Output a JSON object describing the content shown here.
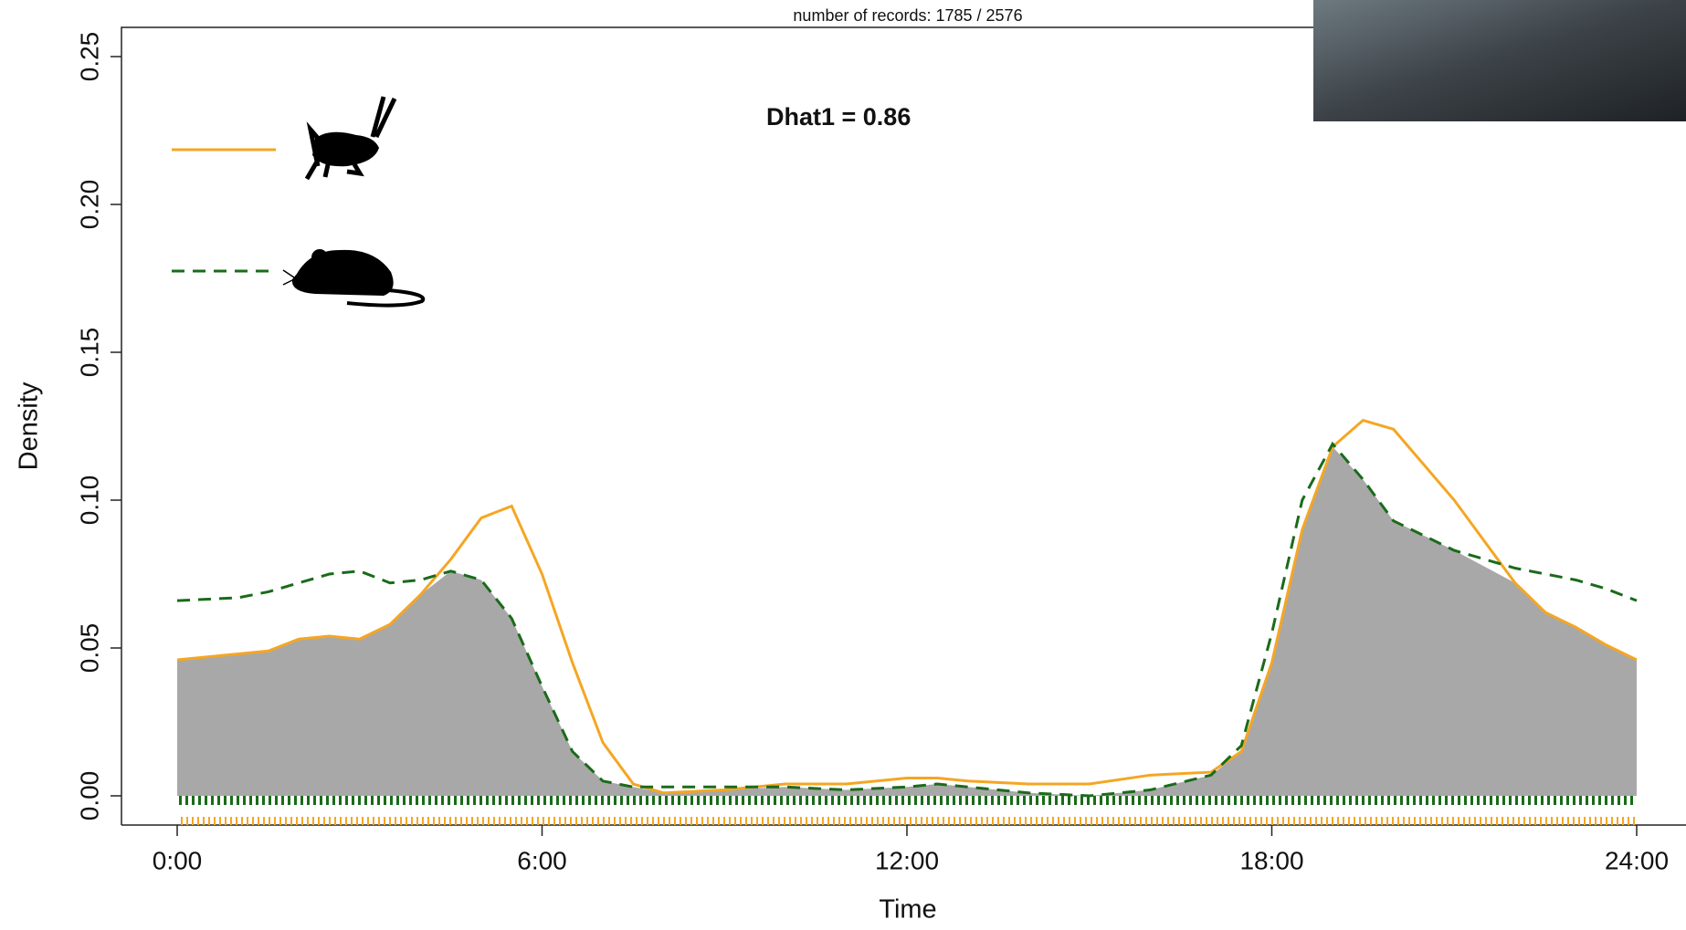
{
  "chart_data": {
    "type": "line",
    "title": "number of records: 1785 / 2576",
    "annotation": "Dhat1 = 0.86",
    "x_label": "Time",
    "y_label": "Density",
    "x": [
      0,
      1,
      1.5,
      2,
      2.5,
      3,
      3.5,
      4,
      4.5,
      5,
      5.5,
      6,
      6.5,
      7,
      7.5,
      8,
      9,
      10,
      11,
      12,
      12.5,
      13,
      14,
      15,
      16,
      17,
      17.5,
      18,
      18.5,
      19,
      19.5,
      20,
      21,
      22,
      22.5,
      23,
      23.5,
      24
    ],
    "series": [
      {
        "color": "#f5a623",
        "dash": false,
        "values": [
          0.046,
          0.048,
          0.049,
          0.053,
          0.054,
          0.053,
          0.058,
          0.068,
          0.08,
          0.094,
          0.098,
          0.075,
          0.045,
          0.018,
          0.004,
          0.001,
          0.002,
          0.004,
          0.004,
          0.006,
          0.006,
          0.005,
          0.004,
          0.004,
          0.007,
          0.008,
          0.015,
          0.045,
          0.09,
          0.118,
          0.127,
          0.124,
          0.1,
          0.072,
          0.062,
          0.057,
          0.051,
          0.046
        ]
      },
      {
        "color": "#1a6b1a",
        "dash": true,
        "values": [
          0.066,
          0.067,
          0.069,
          0.072,
          0.075,
          0.076,
          0.072,
          0.073,
          0.076,
          0.073,
          0.06,
          0.037,
          0.015,
          0.005,
          0.003,
          0.003,
          0.003,
          0.003,
          0.002,
          0.003,
          0.004,
          0.003,
          0.001,
          0.0,
          0.002,
          0.007,
          0.017,
          0.055,
          0.1,
          0.119,
          0.107,
          0.093,
          0.083,
          0.077,
          0.075,
          0.073,
          0.07,
          0.066
        ]
      }
    ],
    "overlap_color": "#a8a8a8",
    "xlim": [
      0,
      24
    ],
    "xticks": [
      {
        "value": 0,
        "label": "0:00"
      },
      {
        "value": 6,
        "label": "6:00"
      },
      {
        "value": 12,
        "label": "12:00"
      },
      {
        "value": 18,
        "label": "18:00"
      },
      {
        "value": 24,
        "label": "24:00"
      }
    ],
    "ylim": [
      0,
      0.25
    ],
    "yticks": [
      {
        "value": 0,
        "label": "0.00"
      },
      {
        "value": 0.05,
        "label": "0.05"
      },
      {
        "value": 0.1,
        "label": "0.10"
      },
      {
        "value": 0.15,
        "label": "0.15"
      },
      {
        "value": 0.2,
        "label": "0.20"
      },
      {
        "value": 0.25,
        "label": "0.25"
      }
    ]
  }
}
